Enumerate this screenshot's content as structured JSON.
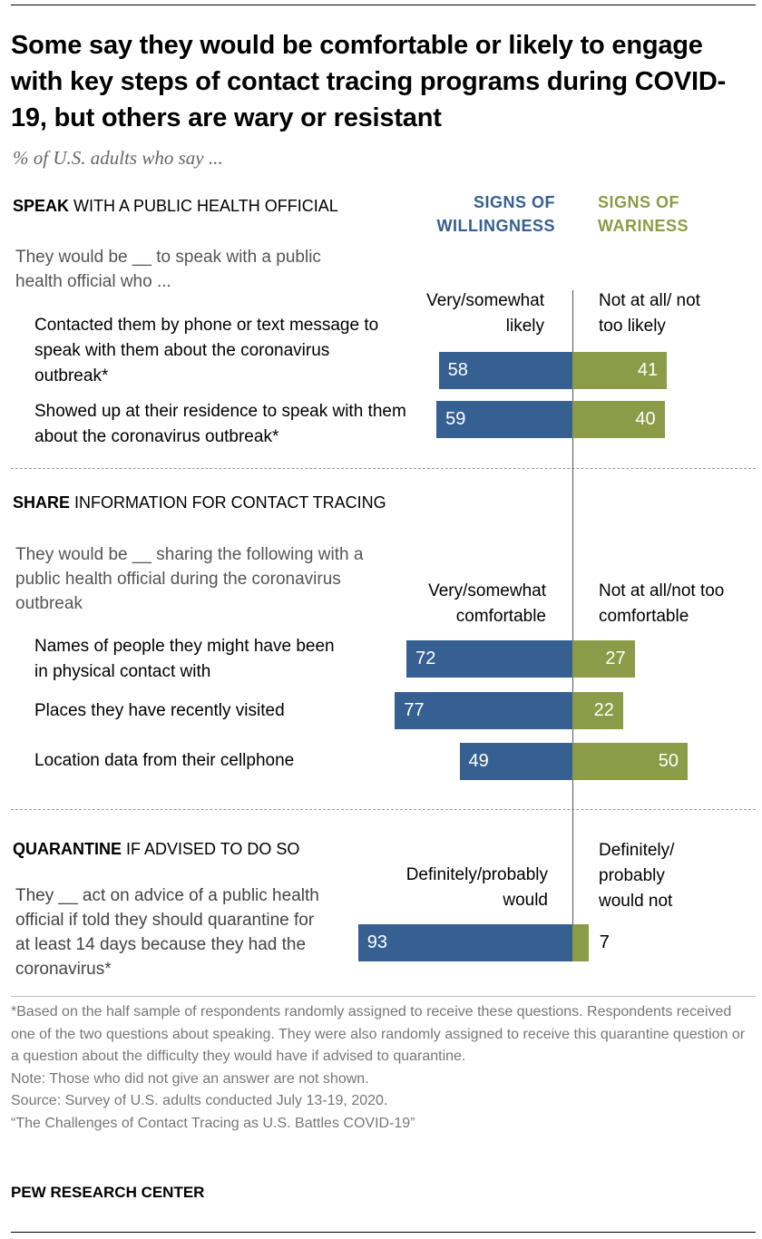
{
  "title": "Some say they would be comfortable or likely to engage with key steps of contact tracing programs during COVID-19, but others are wary or resistant",
  "subtitle": "% of U.S. adults who say ...",
  "column_headers": {
    "willing": "SIGNS OF WILLINGNESS",
    "wary": "SIGNS OF WARINESS"
  },
  "colors": {
    "willing": "#366092",
    "wary": "#8c9b48"
  },
  "sections": [
    {
      "bold": "SPEAK",
      "rest": " WITH A PUBLIC HEALTH OFFICIAL",
      "question": "They would be __ to speak with a public health official who ...",
      "left_label": "Very/somewhat likely",
      "right_label": "Not at all/ not too likely"
    },
    {
      "bold": "SHARE",
      "rest": " INFORMATION FOR CONTACT TRACING",
      "question": "They would be __ sharing the following with a public health official during the coronavirus outbreak",
      "left_label": "Very/somewhat comfortable",
      "right_label": "Not at all/not too comfortable"
    },
    {
      "bold": "QUARANTINE",
      "rest": " IF ADVISED TO DO SO",
      "question": "They __ act on advice of a public health official if told they should quarantine for at least 14 days because they had the coronavirus*",
      "left_label": "Definitely/probably would",
      "right_label": "Definitely/ probably would not"
    }
  ],
  "chart_data": {
    "type": "bar",
    "orientation": "diverging-horizontal",
    "categories": [
      "Contacted them by phone or text message to speak with them about the coronavirus outbreak*",
      "Showed up at their residence to speak with them about the coronavirus outbreak*",
      "Names of people they might have been in physical contact with",
      "Places they have recently visited",
      "Location data from their cellphone",
      "Quarantine if advised"
    ],
    "series": [
      {
        "name": "SIGNS OF WILLINGNESS",
        "values": [
          58,
          59,
          72,
          77,
          49,
          93
        ]
      },
      {
        "name": "SIGNS OF WARINESS",
        "values": [
          41,
          40,
          27,
          22,
          50,
          7
        ]
      }
    ]
  },
  "footnotes": [
    "*Based on the half sample of respondents randomly assigned to receive these questions. Respondents received one of the two questions about speaking. They were also randomly assigned to receive this quarantine question or a question about the difficulty they would have if advised to quarantine.",
    "Note: Those who did not give an answer are not shown.",
    "Source: Survey of U.S. adults conducted July 13-19, 2020.",
    "“The Challenges of Contact Tracing as U.S. Battles COVID-19”"
  ],
  "brand": "PEW RESEARCH CENTER"
}
